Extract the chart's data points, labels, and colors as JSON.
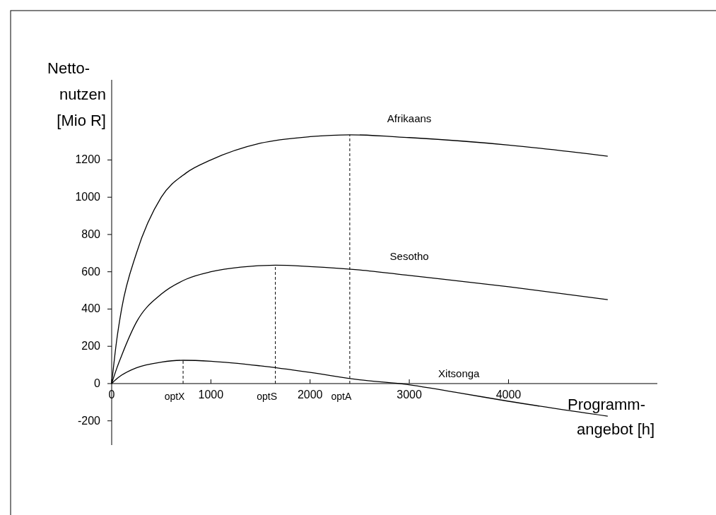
{
  "chart_data": {
    "type": "line",
    "xlabel": "Programm-\nangebot [h]",
    "ylabel": "Netto-\nnutzen\n[Mio R]",
    "xlim": [
      0,
      5500
    ],
    "ylim": [
      -330,
      1630
    ],
    "xticks": [
      0,
      1000,
      2000,
      3000,
      4000
    ],
    "yticks": [
      -200,
      0,
      200,
      400,
      600,
      800,
      1000,
      1200
    ],
    "grid": false,
    "marker": "none",
    "line_style": "solid",
    "series": [
      {
        "name": "Afrikaans",
        "color": "#000000",
        "x": [
          0,
          50,
          100,
          250,
          500,
          750,
          1000,
          1500,
          2000,
          2400,
          3000,
          4000,
          5000
        ],
        "values": [
          0,
          230,
          400,
          700,
          1000,
          1130,
          1200,
          1290,
          1325,
          1335,
          1320,
          1280,
          1220
        ]
      },
      {
        "name": "Sesotho",
        "color": "#000000",
        "x": [
          0,
          50,
          100,
          250,
          500,
          750,
          1000,
          1300,
          1650,
          2000,
          2500,
          3000,
          4000,
          5000
        ],
        "values": [
          0,
          80,
          150,
          330,
          480,
          560,
          600,
          625,
          635,
          628,
          610,
          580,
          520,
          450
        ]
      },
      {
        "name": "Xitsonga",
        "color": "#000000",
        "x": [
          0,
          50,
          100,
          250,
          500,
          720,
          1000,
          1500,
          2000,
          2500,
          2900,
          3500,
          4000,
          5000
        ],
        "values": [
          0,
          25,
          45,
          85,
          115,
          125,
          120,
          95,
          60,
          20,
          0,
          -50,
          -95,
          -175
        ]
      }
    ],
    "ref_lines": [
      {
        "axis": "x",
        "value": 720,
        "label": "optX",
        "line_style": "dashed"
      },
      {
        "axis": "x",
        "value": 1650,
        "label": "optS",
        "line_style": "dashed"
      },
      {
        "axis": "x",
        "value": 2400,
        "label": "optA",
        "line_style": "dashed"
      }
    ]
  }
}
